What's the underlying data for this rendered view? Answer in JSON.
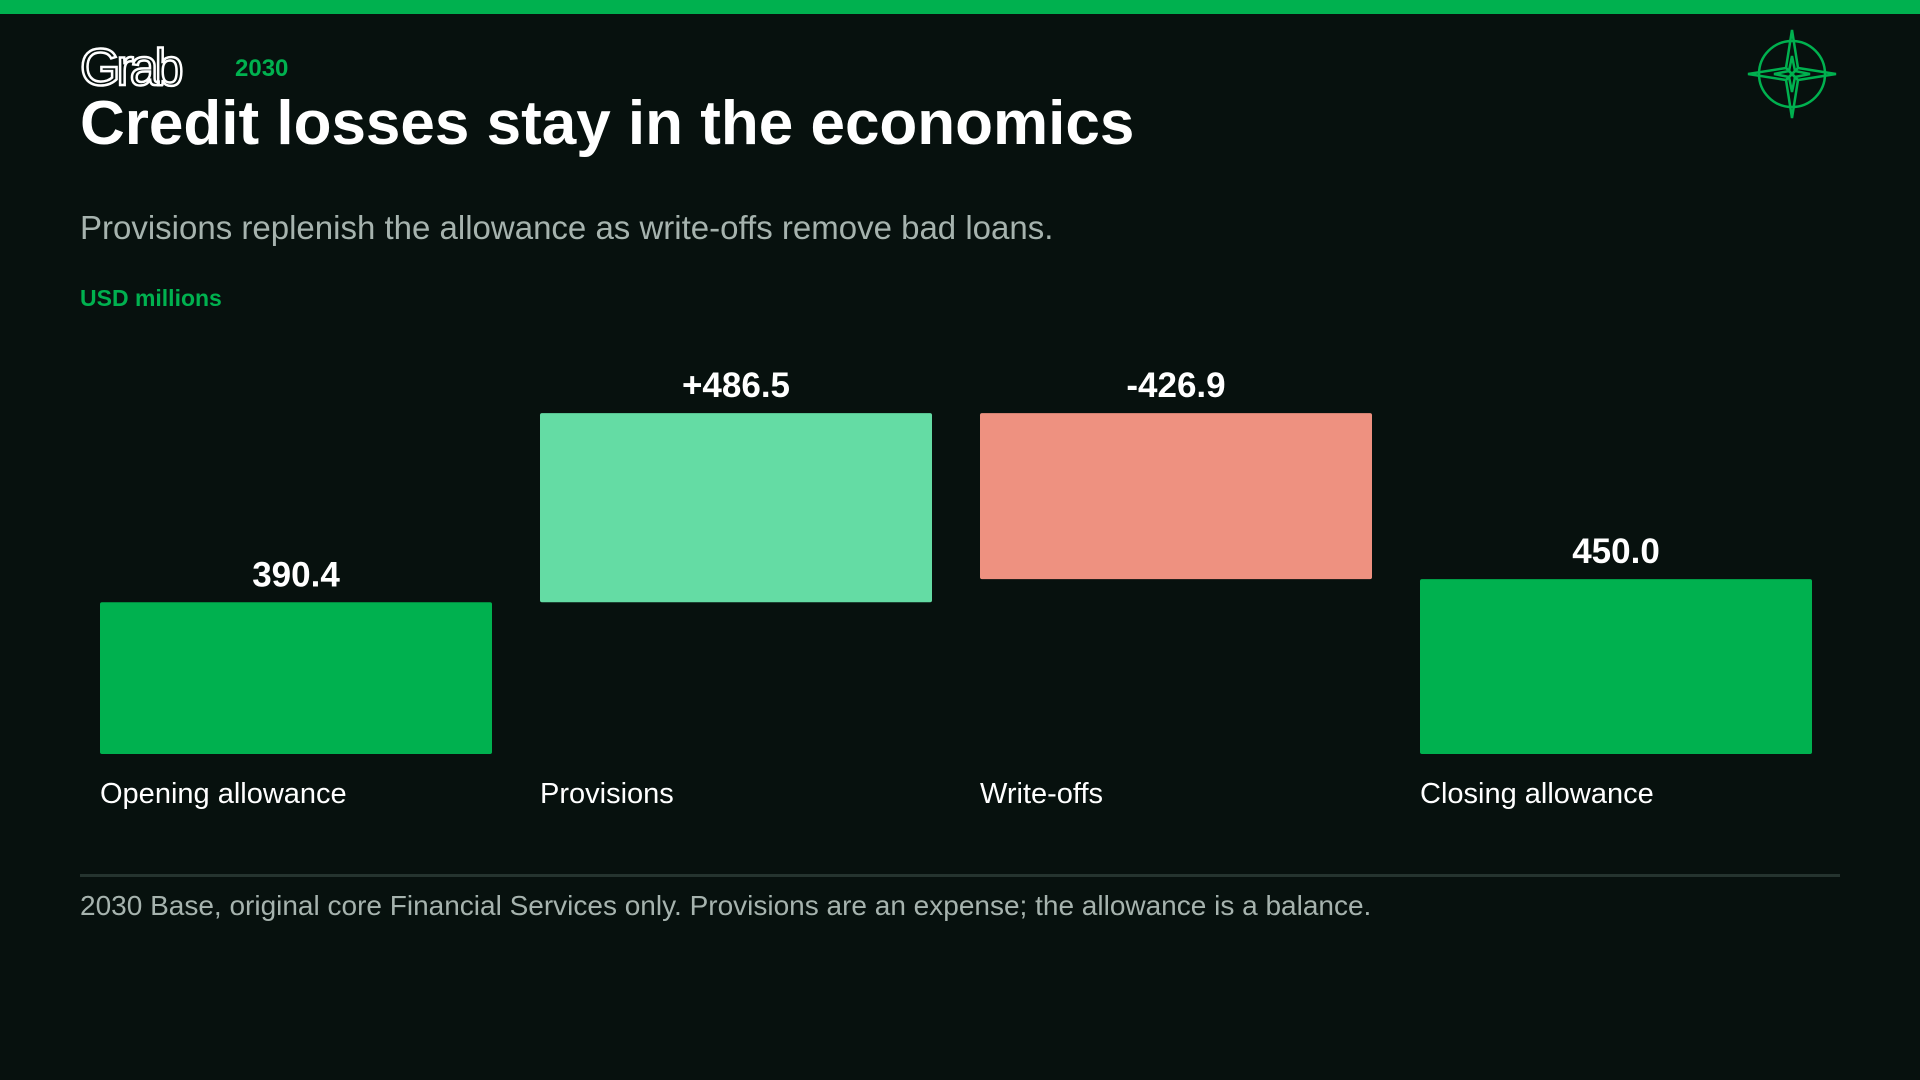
{
  "brand": {
    "logo_text": "Grab",
    "year": "2030"
  },
  "title": "Credit losses stay in the economics",
  "subtitle": "Provisions replenish the allowance as write-offs remove bad loans.",
  "unit_label": "USD millions",
  "footnote": "2030 Base, original core Financial Services only. Provisions are an expense; the allowance is a balance.",
  "icons": {
    "corner": "compass-rose-icon"
  },
  "colors": {
    "accent": "#00b14f",
    "increase": "#64dca4",
    "decrease": "#ee9180",
    "total": "#00b14f",
    "background": "#07110e"
  },
  "chart_data": {
    "type": "bar",
    "subtype": "waterfall",
    "categories": [
      "Opening allowance",
      "Provisions",
      "Write-offs",
      "Closing allowance"
    ],
    "values": [
      390.4,
      486.5,
      -426.9,
      450.0
    ],
    "kinds": [
      "total",
      "increase",
      "decrease",
      "total"
    ],
    "value_labels": [
      "390.4",
      "+486.5",
      "-426.9",
      "450.0"
    ],
    "unit": "USD millions",
    "grid": false,
    "legend": "none"
  }
}
